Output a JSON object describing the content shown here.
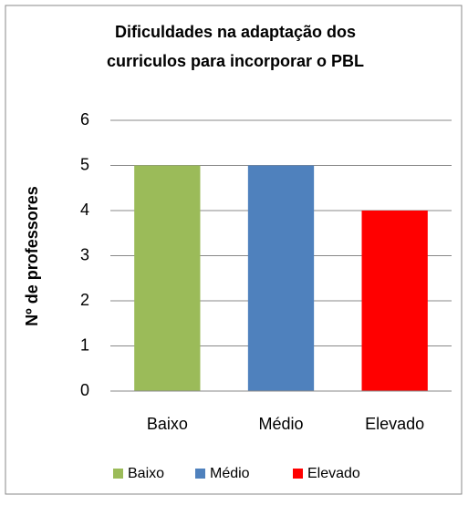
{
  "chart_data": {
    "type": "bar",
    "title": [
      "Dificuldades na adaptação dos",
      "curriculos para incorporar o PBL"
    ],
    "ylabel": "Nº de professores",
    "categories": [
      "Baixo",
      "Médio",
      "Elevado"
    ],
    "values": [
      5,
      5,
      4
    ],
    "colors": [
      "#9bbb59",
      "#4f81bd",
      "#ff0000"
    ],
    "ylim": [
      0,
      6
    ],
    "yticks": [
      0,
      1,
      2,
      3,
      4,
      5,
      6
    ],
    "grid": true,
    "legend": "bottom"
  }
}
